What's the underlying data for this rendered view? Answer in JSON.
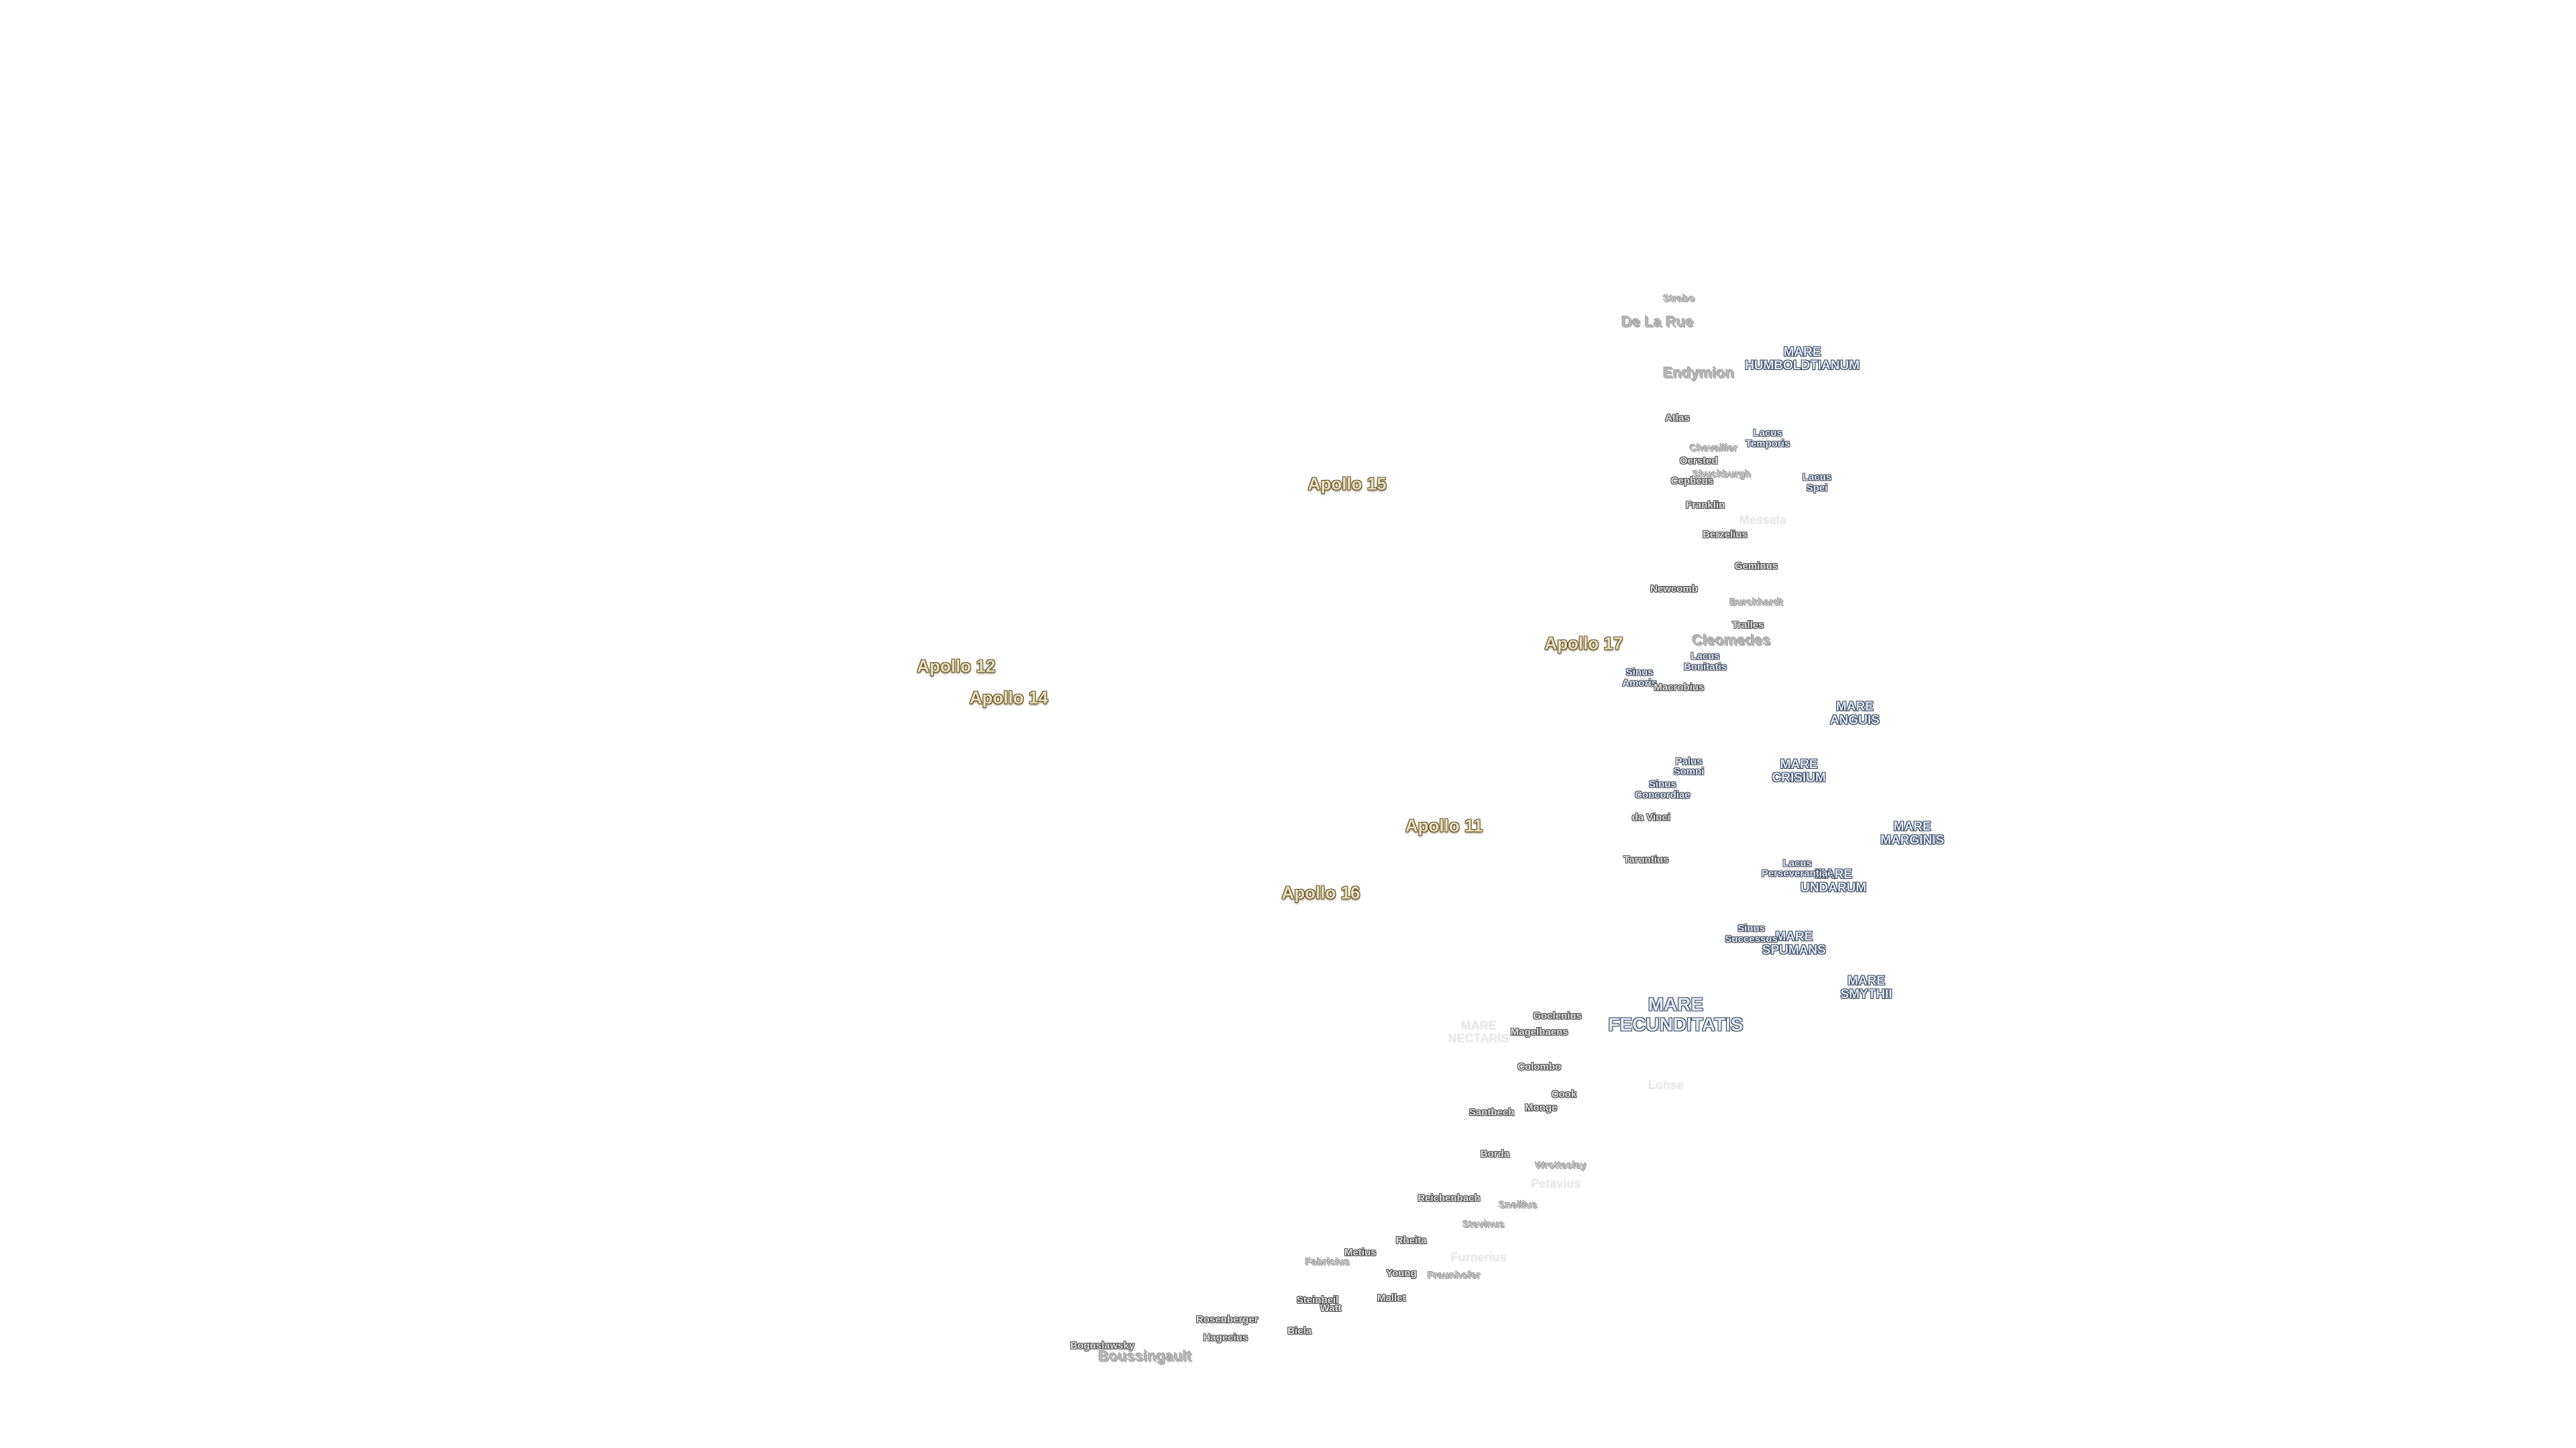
{
  "labels": {
    "apollo": [
      "Apollo 15",
      "Apollo 17",
      "Apollo 12",
      "Apollo 14",
      "Apollo 11",
      "Apollo 16"
    ],
    "maria": [
      "MARE HUMBOLDTIANUM",
      "MARE ANGUIS",
      "MARE CRISIUM",
      "MARE MARGINIS",
      "MARE UNDARUM",
      "MARE SPUMANS",
      "MARE SMYTHII",
      "MARE FECUNDITATIS"
    ],
    "lakes": [
      "Lacus Temporis",
      "Lacus Spei",
      "Lacus Bonitatis",
      "Palus Somni",
      "Sinus Concordiae",
      "Lacus Perseverantiae",
      "Sinus Successus",
      "Sinus Amoris"
    ],
    "craters": [
      "Atlas",
      "Oersted",
      "Cepheus",
      "Franklin",
      "Berzelius",
      "Geminus",
      "Newcomb",
      "Tralles",
      "Macrobius",
      "da Vinci",
      "Taruntius",
      "Goclenius",
      "Magelhaens",
      "Colombo",
      "Cook",
      "Monge",
      "Santbech",
      "Borda",
      "Reichenbach",
      "Rheita",
      "Metius",
      "Young",
      "Mallet",
      "Steinheil",
      "Watt",
      "Rosenberger",
      "Hagecius",
      "Biela",
      "Boguslawsky"
    ],
    "light": [
      "Strabo",
      "De La Rue",
      "Endymion",
      "Chevallier",
      "Shuckburgh",
      "Burckhardt",
      "Cleomedes",
      "Wrottesley",
      "Snellius",
      "Stevinus",
      "Fabricius",
      "Fraunhofer",
      "Boussingault"
    ],
    "faint": [
      "MARE NECTARIS",
      "Messala",
      "Lohse",
      "Petavius",
      "Furnerius"
    ]
  }
}
